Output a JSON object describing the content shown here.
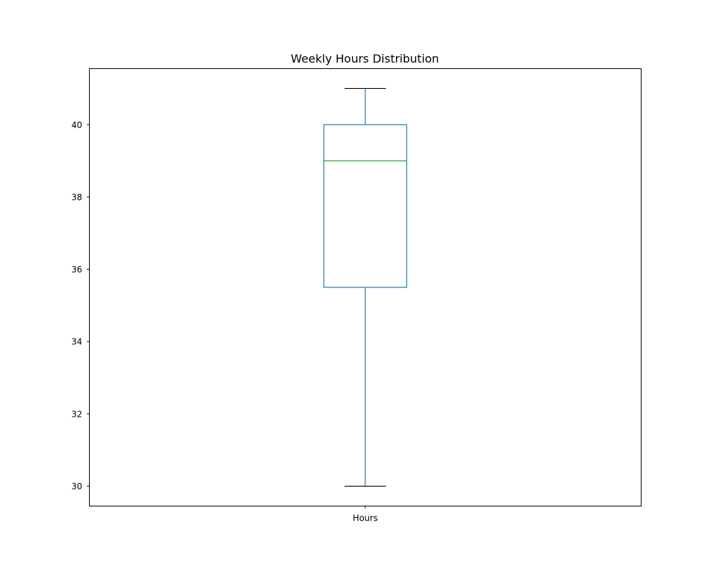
{
  "chart_data": {
    "type": "box",
    "title": "Weekly Hours Distribution",
    "xlabel": "",
    "ylabel": "",
    "categories": [
      "Hours"
    ],
    "boxes": [
      {
        "category": "Hours",
        "whisker_low": 30,
        "q1": 35.5,
        "median": 39,
        "q3": 40,
        "whisker_high": 41
      }
    ],
    "ylim": [
      29.45,
      41.55
    ],
    "yticks": [
      30,
      32,
      34,
      36,
      38,
      40
    ],
    "grid": false,
    "legend": "none",
    "colors": {
      "box": "#1f77b4",
      "median": "#2ca02c",
      "caps": "#000000",
      "axes": "#000000"
    }
  }
}
